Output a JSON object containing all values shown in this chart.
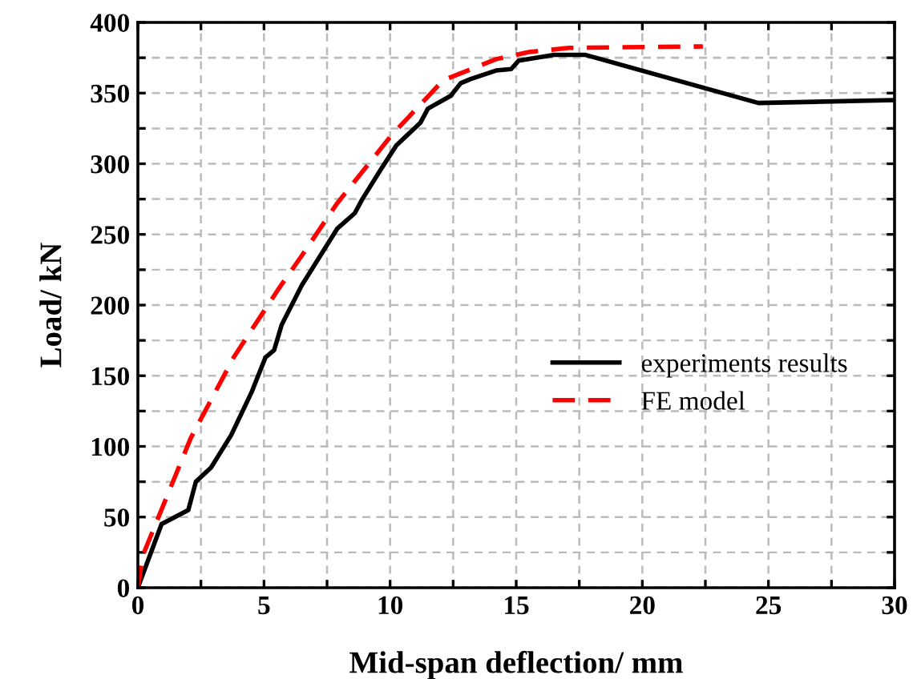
{
  "chart_data": {
    "type": "line",
    "xlabel": "Mid-span deflection/ mm",
    "ylabel": "Load/ kN",
    "xlim": [
      0,
      30
    ],
    "ylim": [
      0,
      400
    ],
    "xticks": [
      0,
      {
        "value": 2.5,
        "label": null
      },
      5,
      {
        "value": 7.5,
        "label": null
      },
      10,
      {
        "value": 12.5,
        "label": null
      },
      15,
      {
        "value": 17.5,
        "label": null
      },
      20,
      {
        "value": 22.5,
        "label": null
      },
      25,
      {
        "value": 27.5,
        "label": null
      },
      30
    ],
    "yticks": [
      0,
      {
        "value": 25,
        "label": null
      },
      50,
      {
        "value": 75,
        "label": null
      },
      100,
      {
        "value": 125,
        "label": null
      },
      150,
      {
        "value": 175,
        "label": null
      },
      200,
      {
        "value": 225,
        "label": null
      },
      250,
      {
        "value": 275,
        "label": null
      },
      300,
      {
        "value": 325,
        "label": null
      },
      350,
      {
        "value": 375,
        "label": null
      },
      400
    ],
    "grid": true,
    "legend": "right",
    "series": [
      {
        "name": "experiments results",
        "color": "#000000",
        "line_style": "solid",
        "x": [
          0,
          0.94,
          2,
          2.3,
          2.9,
          3.7,
          4.5,
          5.06,
          5.4,
          5.7,
          6.5,
          7.9,
          8.6,
          8.9,
          9.6,
          10.25,
          11.2,
          11.5,
          12.4,
          12.8,
          13.2,
          14.2,
          14.8,
          15.1,
          16.5,
          17.75,
          24.6,
          30
        ],
        "values": [
          0,
          45,
          55,
          75,
          85,
          108,
          138,
          163,
          168,
          186,
          214,
          254,
          265,
          275,
          295,
          313,
          329,
          339,
          348,
          357,
          360,
          366,
          367,
          373,
          377,
          377,
          343,
          345
        ]
      },
      {
        "name": "FE model",
        "color": "#ff0000",
        "line_style": "dashed",
        "x": [
          0,
          0.2,
          2.1,
          3.8,
          4.75,
          5.6,
          6.5,
          7.9,
          10.05,
          12.1,
          14.2,
          15.5,
          17.1,
          22.4
        ],
        "values": [
          0,
          23,
          106,
          163,
          189,
          212,
          235,
          272,
          320,
          359,
          374,
          379,
          382,
          383
        ]
      }
    ]
  }
}
